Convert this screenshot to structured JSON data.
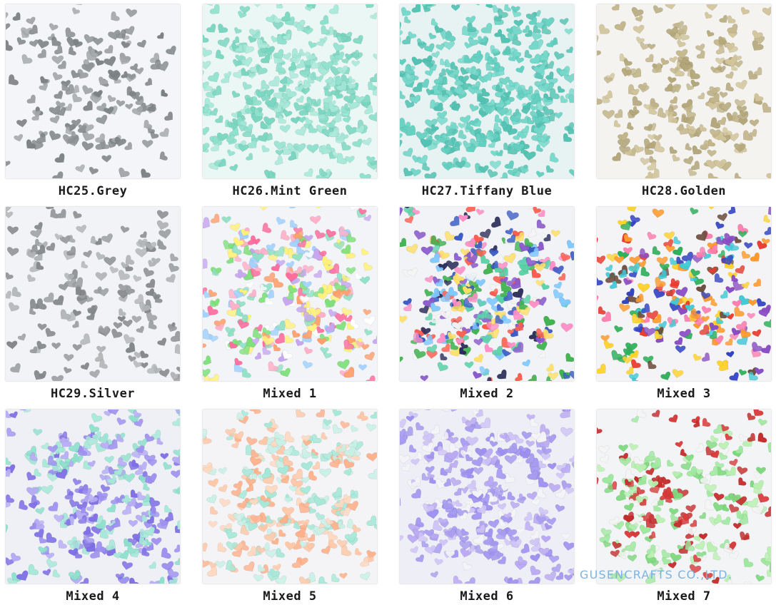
{
  "products": [
    {
      "label": "HC25.Grey",
      "colors": [
        "#8e9395",
        "#a4a8aa",
        "#7c8183"
      ],
      "background": "#f4f5f8",
      "density": 150
    },
    {
      "label": "HC26.Mint Green",
      "colors": [
        "#8ee0cc",
        "#a6e8d8",
        "#7ad6c0"
      ],
      "background": "#eaf7f4",
      "density": 320
    },
    {
      "label": "HC27.Tiffany Blue",
      "colors": [
        "#62cfc0",
        "#74d8ca",
        "#52c2b2"
      ],
      "background": "#e6f3f2",
      "density": 360
    },
    {
      "label": "HC28.Golden",
      "colors": [
        "#c2b58a",
        "#d1c49a",
        "#b3a679"
      ],
      "background": "#f4f3f0",
      "density": 200
    },
    {
      "label": "HC29.Silver",
      "colors": [
        "#9a9d9f",
        "#b2b5b7",
        "#85888a"
      ],
      "background": "#f2f3f6",
      "density": 150
    },
    {
      "label": "Mixed 1",
      "colors": [
        "#8fe0c5",
        "#ffb0c8",
        "#fff27a",
        "#9ed0ff",
        "#c7a6f0",
        "#ff9f6b",
        "#ff6b9c",
        "#7ee07a",
        "#ffffff"
      ],
      "background": "#f3f4f7",
      "density": 260
    },
    {
      "label": "Mixed 2",
      "colors": [
        "#3b5bc6",
        "#ff5c4d",
        "#ffe066",
        "#5ad1a8",
        "#7fc8ff",
        "#ff8fc7",
        "#2b2d5a",
        "#f4f4f4",
        "#8a5acc",
        "#3fb24f"
      ],
      "background": "#f2f3f6",
      "density": 300
    },
    {
      "label": "Mixed 3",
      "colors": [
        "#3344c4",
        "#e83b2e",
        "#ffd22e",
        "#2fb05a",
        "#ff7fb0",
        "#8a4dc4",
        "#6b4a3a",
        "#3ec9d6",
        "#ff9b2e"
      ],
      "background": "#f4f4f6",
      "density": 230
    },
    {
      "label": "Mixed 4",
      "colors": [
        "#8ee0cc",
        "#9d8ff0",
        "#b6acf5",
        "#a6e8d8",
        "#7f6fe6"
      ],
      "background": "#eef0f6",
      "density": 260
    },
    {
      "label": "Mixed 5",
      "colors": [
        "#ffc7a6",
        "#a6e8d8",
        "#ffd8bf",
        "#ffb08a",
        "#c8f0e6"
      ],
      "background": "#f4f3f5",
      "density": 260
    },
    {
      "label": "Mixed 6",
      "colors": [
        "#b9a8f2",
        "#9d8ff0",
        "#f4f4f8",
        "#cfc4f7",
        "#a79cf0"
      ],
      "background": "#eeeef6",
      "density": 300
    },
    {
      "label": "Mixed 7",
      "colors": [
        "#9fe89f",
        "#c42b2b",
        "#f4f4f4",
        "#7dd87d",
        "#d83a3a",
        "#b8f0b0"
      ],
      "background": "#f3f4f6",
      "density": 230
    }
  ],
  "watermark": "GUSENCRAFTS CO.,LTD."
}
